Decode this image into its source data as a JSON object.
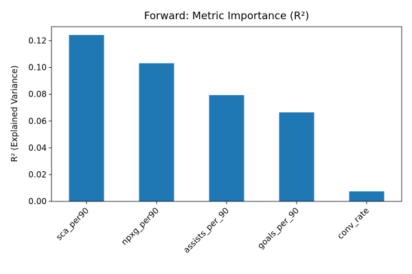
{
  "chart_data": {
    "type": "bar",
    "title": "Forward: Metric Importance (R²)",
    "xlabel": "",
    "ylabel": "R² (Explained Variance)",
    "categories": [
      "sca_per90",
      "npxg_per90",
      "assists_per_90",
      "goals_per_90",
      "conv_rate"
    ],
    "values": [
      0.1243,
      0.1032,
      0.0794,
      0.0665,
      0.0075
    ],
    "ylim": [
      0,
      0.1305
    ],
    "yticks": [
      0.0,
      0.02,
      0.04,
      0.06,
      0.08,
      0.1,
      0.12
    ],
    "ytick_labels": [
      "0.00",
      "0.02",
      "0.04",
      "0.06",
      "0.08",
      "0.10",
      "0.12"
    ],
    "bar_color": "#1f77b4",
    "grid": false,
    "legend": "none"
  }
}
